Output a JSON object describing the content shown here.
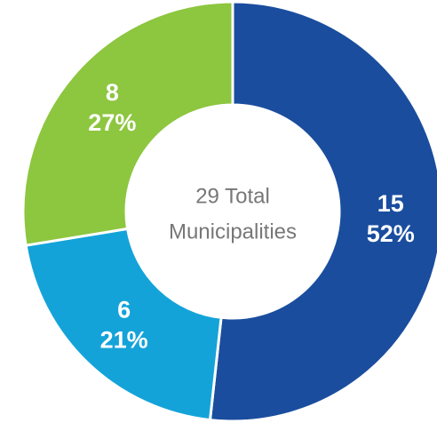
{
  "chart_data": {
    "type": "donut",
    "categories": [
      null,
      null,
      null
    ],
    "values": [
      15,
      6,
      8
    ],
    "percent_labels": [
      "52%",
      "21%",
      "27%"
    ],
    "colors": [
      "#1a4d9e",
      "#14a3d9",
      "#8dc63f"
    ],
    "center_text": [
      "29 Total",
      "Municipalities"
    ]
  }
}
